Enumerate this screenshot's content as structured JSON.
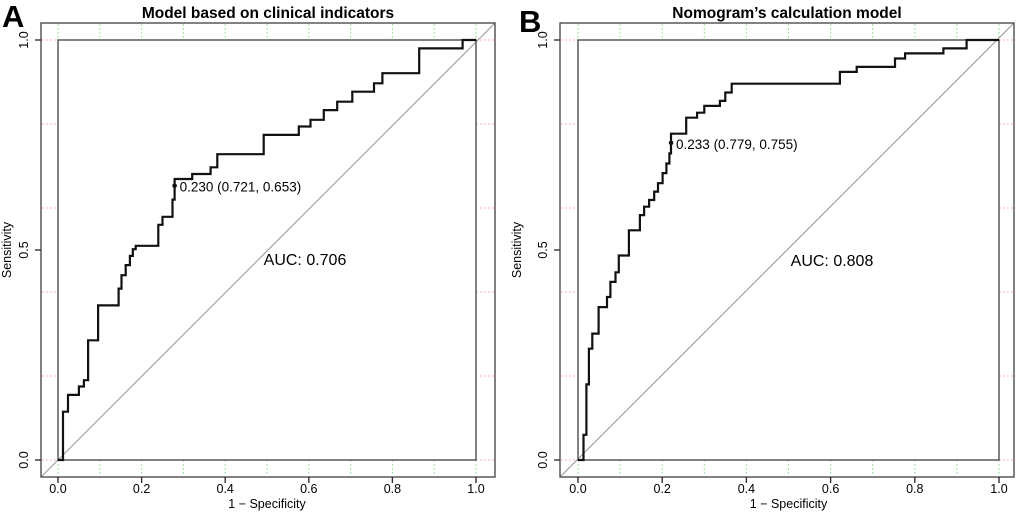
{
  "figure": {
    "background": "#ffffff",
    "colors": {
      "curve": "#111111",
      "diagonal": "#999999",
      "box": "#4d4d4d",
      "tick": "#333333",
      "text": "#000000",
      "grid_vertical_green": "#85e085",
      "grid_horizontal_red": "#ffa0a0"
    }
  },
  "chart_data": [
    {
      "type": "line",
      "panel_letter": "A",
      "title": "Model based on clinical indicators",
      "xlabel": "1 − Specificity",
      "ylabel": "Sensitivity",
      "xlim": [
        0,
        1
      ],
      "ylim": [
        0,
        1
      ],
      "x_ticks": [
        0.0,
        0.2,
        0.4,
        0.6,
        0.8,
        1.0
      ],
      "x_tick_labels": [
        "0.0",
        "0.2",
        "0.4",
        "0.6",
        "0.8",
        "1.0"
      ],
      "y_ticks": [
        0.0,
        0.5,
        1.0
      ],
      "y_tick_labels": [
        "0.0",
        "0.5",
        "1.0"
      ],
      "grid": {
        "vertical_step": 0.1,
        "horizontal_step": 0.2,
        "style": "dotted-in-margins"
      },
      "diagonal_reference_line": {
        "from": [
          0,
          0
        ],
        "to": [
          1,
          1
        ]
      },
      "auc_label": "AUC: 0.706",
      "threshold": {
        "label": "0.230 (0.721, 0.653)",
        "threshold": 0.23,
        "specificity": 0.721,
        "sensitivity": 0.653,
        "x": 0.279,
        "y": 0.653
      },
      "series": [
        {
          "name": "ROC curve",
          "points": [
            [
              0,
              0
            ],
            [
              0.012,
              0
            ],
            [
              0.012,
              0.115
            ],
            [
              0.024,
              0.115
            ],
            [
              0.024,
              0.155
            ],
            [
              0.05,
              0.155
            ],
            [
              0.05,
              0.175
            ],
            [
              0.062,
              0.175
            ],
            [
              0.062,
              0.19
            ],
            [
              0.072,
              0.19
            ],
            [
              0.072,
              0.285
            ],
            [
              0.096,
              0.285
            ],
            [
              0.096,
              0.368
            ],
            [
              0.145,
              0.368
            ],
            [
              0.145,
              0.408
            ],
            [
              0.152,
              0.408
            ],
            [
              0.152,
              0.44
            ],
            [
              0.162,
              0.44
            ],
            [
              0.162,
              0.464
            ],
            [
              0.172,
              0.464
            ],
            [
              0.172,
              0.486
            ],
            [
              0.179,
              0.486
            ],
            [
              0.179,
              0.502
            ],
            [
              0.186,
              0.502
            ],
            [
              0.186,
              0.51
            ],
            [
              0.24,
              0.51
            ],
            [
              0.24,
              0.56
            ],
            [
              0.25,
              0.56
            ],
            [
              0.25,
              0.579
            ],
            [
              0.274,
              0.579
            ],
            [
              0.274,
              0.62
            ],
            [
              0.279,
              0.62
            ],
            [
              0.279,
              0.669
            ],
            [
              0.321,
              0.669
            ],
            [
              0.321,
              0.681
            ],
            [
              0.365,
              0.681
            ],
            [
              0.365,
              0.697
            ],
            [
              0.381,
              0.697
            ],
            [
              0.381,
              0.728
            ],
            [
              0.492,
              0.728
            ],
            [
              0.492,
              0.774
            ],
            [
              0.576,
              0.774
            ],
            [
              0.576,
              0.794
            ],
            [
              0.604,
              0.794
            ],
            [
              0.604,
              0.81
            ],
            [
              0.636,
              0.81
            ],
            [
              0.636,
              0.833
            ],
            [
              0.668,
              0.833
            ],
            [
              0.668,
              0.853
            ],
            [
              0.704,
              0.853
            ],
            [
              0.704,
              0.877
            ],
            [
              0.756,
              0.877
            ],
            [
              0.756,
              0.897
            ],
            [
              0.776,
              0.897
            ],
            [
              0.776,
              0.921
            ],
            [
              0.864,
              0.921
            ],
            [
              0.864,
              0.98
            ],
            [
              0.968,
              0.98
            ],
            [
              0.968,
              1
            ],
            [
              1,
              1
            ]
          ]
        }
      ]
    },
    {
      "type": "line",
      "panel_letter": "B",
      "title": "Nomogram’s calculation model",
      "xlabel": "1 − Specificity",
      "ylabel": "Sensitivity",
      "xlim": [
        0,
        1
      ],
      "ylim": [
        0,
        1
      ],
      "x_ticks": [
        0.0,
        0.2,
        0.4,
        0.6,
        0.8,
        1.0
      ],
      "x_tick_labels": [
        "0.0",
        "0.2",
        "0.4",
        "0.6",
        "0.8",
        "1.0"
      ],
      "y_ticks": [
        0.0,
        0.5,
        1.0
      ],
      "y_tick_labels": [
        "0.0",
        "0.5",
        "1.0"
      ],
      "grid": {
        "vertical_step": 0.1,
        "horizontal_step": 0.2,
        "style": "dotted-in-margins"
      },
      "diagonal_reference_line": {
        "from": [
          0,
          0
        ],
        "to": [
          1,
          1
        ]
      },
      "auc_label": "AUC: 0.808",
      "threshold": {
        "label": "0.233 (0.779, 0.755)",
        "threshold": 0.233,
        "specificity": 0.779,
        "sensitivity": 0.755,
        "x": 0.221,
        "y": 0.755
      },
      "series": [
        {
          "name": "ROC curve",
          "points": [
            [
              0,
              0
            ],
            [
              0.013,
              0
            ],
            [
              0.013,
              0.06
            ],
            [
              0.02,
              0.06
            ],
            [
              0.02,
              0.18
            ],
            [
              0.026,
              0.18
            ],
            [
              0.026,
              0.265
            ],
            [
              0.034,
              0.265
            ],
            [
              0.034,
              0.301
            ],
            [
              0.049,
              0.301
            ],
            [
              0.049,
              0.364
            ],
            [
              0.069,
              0.364
            ],
            [
              0.069,
              0.388
            ],
            [
              0.077,
              0.388
            ],
            [
              0.077,
              0.424
            ],
            [
              0.089,
              0.424
            ],
            [
              0.089,
              0.447
            ],
            [
              0.097,
              0.447
            ],
            [
              0.097,
              0.487
            ],
            [
              0.121,
              0.487
            ],
            [
              0.121,
              0.547
            ],
            [
              0.147,
              0.547
            ],
            [
              0.147,
              0.583
            ],
            [
              0.157,
              0.583
            ],
            [
              0.157,
              0.603
            ],
            [
              0.169,
              0.603
            ],
            [
              0.169,
              0.619
            ],
            [
              0.181,
              0.619
            ],
            [
              0.181,
              0.639
            ],
            [
              0.19,
              0.639
            ],
            [
              0.19,
              0.659
            ],
            [
              0.201,
              0.659
            ],
            [
              0.201,
              0.683
            ],
            [
              0.21,
              0.683
            ],
            [
              0.21,
              0.706
            ],
            [
              0.217,
              0.706
            ],
            [
              0.217,
              0.73
            ],
            [
              0.221,
              0.73
            ],
            [
              0.221,
              0.777
            ],
            [
              0.257,
              0.777
            ],
            [
              0.257,
              0.815
            ],
            [
              0.283,
              0.815
            ],
            [
              0.283,
              0.827
            ],
            [
              0.3,
              0.827
            ],
            [
              0.3,
              0.843
            ],
            [
              0.337,
              0.843
            ],
            [
              0.337,
              0.855
            ],
            [
              0.35,
              0.855
            ],
            [
              0.35,
              0.875
            ],
            [
              0.365,
              0.875
            ],
            [
              0.365,
              0.896
            ],
            [
              0.622,
              0.896
            ],
            [
              0.622,
              0.924
            ],
            [
              0.662,
              0.924
            ],
            [
              0.662,
              0.936
            ],
            [
              0.753,
              0.936
            ],
            [
              0.753,
              0.956
            ],
            [
              0.777,
              0.956
            ],
            [
              0.777,
              0.968
            ],
            [
              0.868,
              0.968
            ],
            [
              0.868,
              0.98
            ],
            [
              0.923,
              0.98
            ],
            [
              0.923,
              1
            ],
            [
              1,
              1
            ]
          ]
        }
      ]
    }
  ]
}
